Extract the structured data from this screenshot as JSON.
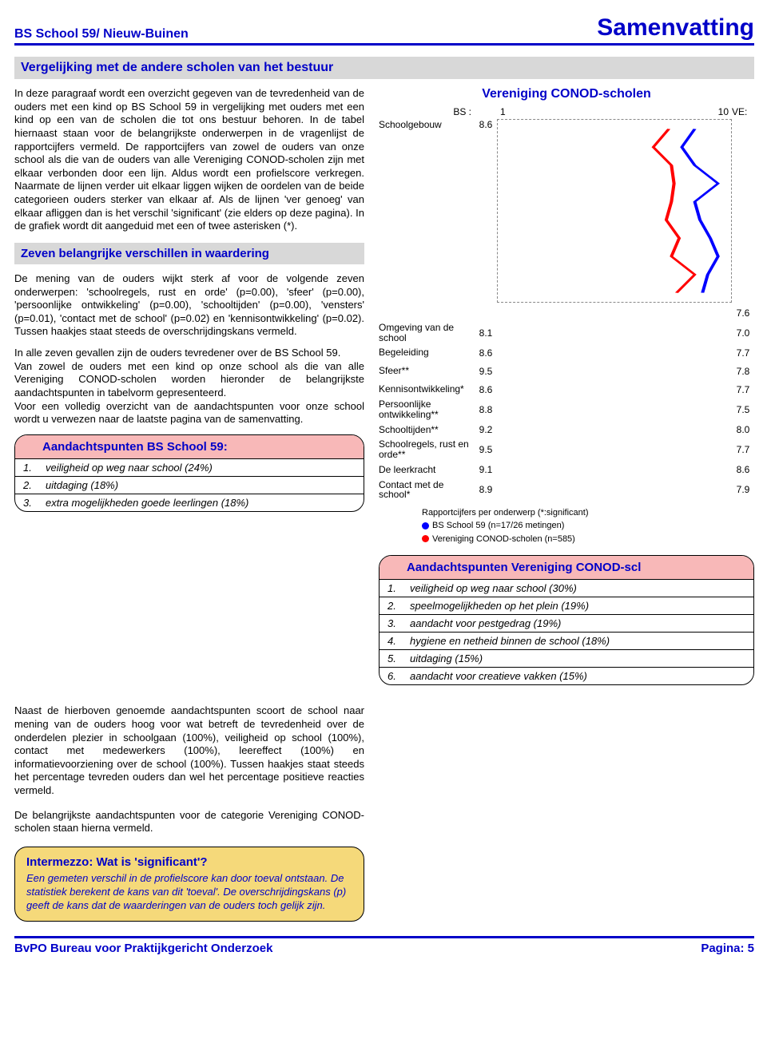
{
  "header": {
    "left": "BS School 59/ Nieuw-Buinen",
    "right": "Samenvatting"
  },
  "section_title": "Vergelijking met de andere scholen van het bestuur",
  "para1": "In deze paragraaf wordt een overzicht gegeven van de tevredenheid van de ouders met een kind op BS School 59 in vergelijking met ouders met een kind op een van de scholen die tot ons bestuur behoren.",
  "para2": "In de tabel hiernaast staan voor de belangrijkste onderwerpen in de vragenlijst de rapportcijfers vermeld. De rapportcijfers van zowel de ouders van onze school als die van de ouders van alle Vereniging CONOD-scholen zijn met elkaar verbonden door een lijn. Aldus wordt een profielscore verkregen. Naarmate de lijnen verder uit elkaar liggen wijken de oordelen van de beide categorieen ouders sterker van elkaar af. Als de lijnen 'ver genoeg' van elkaar afliggen dan is het verschil 'significant' (zie elders op deze pagina). In de grafiek wordt dit aangeduid met een of twee asterisken (*).",
  "sub_title": "Zeven belangrijke verschillen in waardering",
  "para3": "De mening van de ouders wijkt sterk af voor de volgende zeven onderwerpen: 'schoolregels, rust en orde' (p=0.00), 'sfeer' (p=0.00), 'persoonlijke ontwikkeling' (p=0.00), 'schooltijden' (p=0.00), 'vensters' (p=0.01), 'contact met de school' (p=0.02) en 'kennisontwikkeling' (p=0.02). Tussen haakjes staat steeds de overschrijdingskans vermeld.",
  "para4": "In alle zeven gevallen zijn de ouders tevredener over de BS School 59.",
  "para5": "Van zowel de ouders met een kind op onze school als die van alle Vereniging CONOD-scholen worden hieronder de belangrijkste aandachtspunten in tabelvorm gepresenteerd.",
  "para6": "Voor een volledig overzicht van de aandachtspunten voor onze school wordt u verwezen naar de laatste pagina van de samenvatting.",
  "box_left": {
    "title": "Aandachtspunten BS School 59:",
    "rows": [
      [
        "1.",
        "veiligheid op weg naar school (24%)"
      ],
      [
        "2.",
        "uitdaging (18%)"
      ],
      [
        "3.",
        "extra mogelijkheden goede leerlingen (18%)"
      ]
    ]
  },
  "para_bottom": "Naast de hierboven genoemde aandachtspunten scoort de school naar mening van de ouders hoog voor wat betreft de tevredenheid over de onderdelen plezier in schoolgaan (100%), veiligheid op school (100%), contact met medewerkers (100%), leereffect (100%) en informatievoorziening over de school (100%). Tussen haakjes staat steeds het percentage tevreden ouders dan wel het percentage positieve reacties vermeld.",
  "para_bottom2": "De belangrijkste aandachtspunten voor de categorie Vereniging CONOD-scholen staan hierna vermeld.",
  "intermezzo": {
    "title": "Intermezzo: Wat is 'significant'?",
    "body": "Een gemeten verschil in de profielscore kan door toeval ontstaan. De statistiek berekent de kans van dit 'toeval'. De overschrijdingskans (p) geeft de kans dat de waarderingen van de ouders toch gelijk zijn."
  },
  "chart": {
    "title": "Vereniging CONOD-scholen",
    "axis_label_left": "BS :",
    "axis_min": "1",
    "axis_max": "10",
    "axis_label_right": "VE:",
    "rows": [
      {
        "label": "Schoolgebouw",
        "bs": "8.6",
        "ve": "7.6"
      },
      {
        "label": "Omgeving van de school",
        "bs": "8.1",
        "ve": "7.0"
      },
      {
        "label": "Begeleiding",
        "bs": "8.6",
        "ve": "7.7"
      },
      {
        "label": "Sfeer**",
        "bs": "9.5",
        "ve": "7.8"
      },
      {
        "label": "Kennisontwikkeling*",
        "bs": "8.6",
        "ve": "7.7"
      },
      {
        "label": "Persoonlijke ontwikkeling**",
        "bs": "8.8",
        "ve": "7.5"
      },
      {
        "label": "Schooltijden**",
        "bs": "9.2",
        "ve": "8.0"
      },
      {
        "label": "Schoolregels, rust en orde**",
        "bs": "9.5",
        "ve": "7.7"
      },
      {
        "label": "De leerkracht",
        "bs": "9.1",
        "ve": "8.6"
      },
      {
        "label": "Contact met de school*",
        "bs": "8.9",
        "ve": "7.9"
      }
    ],
    "profile_bs_color": "#0000ff",
    "profile_ve_color": "#ff0000",
    "legend_caption": "Rapportcijfers per onderwerp (*:significant)",
    "legend_bs": "BS School 59 (n=17/26 metingen)",
    "legend_ve": "Vereniging CONOD-scholen (n=585)"
  },
  "box_right": {
    "title": "Aandachtspunten Vereniging CONOD-scl",
    "rows": [
      [
        "1.",
        "veiligheid op weg naar school (30%)"
      ],
      [
        "2.",
        "speelmogelijkheden op het plein (19%)"
      ],
      [
        "3.",
        "aandacht voor pestgedrag (19%)"
      ],
      [
        "4.",
        "hygiene en netheid binnen de school (18%)"
      ],
      [
        "5.",
        "uitdaging (15%)"
      ],
      [
        "6.",
        "aandacht voor creatieve vakken (15%)"
      ]
    ]
  },
  "footer": {
    "left": "BvPO Bureau voor Praktijkgericht Onderzoek",
    "right": "Pagina: 5"
  }
}
